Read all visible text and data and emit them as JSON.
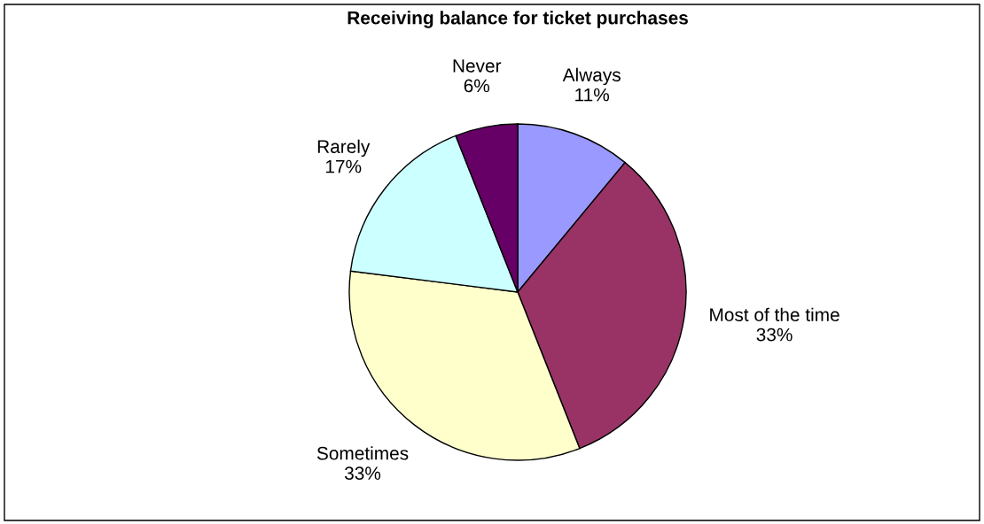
{
  "chart_data": {
    "type": "pie",
    "title": "Receiving balance for ticket purchases",
    "categories": [
      "Always",
      "Most of the time",
      "Sometimes",
      "Rarely",
      "Never"
    ],
    "values": [
      11,
      33,
      33,
      17,
      6
    ],
    "value_labels": [
      "11%",
      "33%",
      "33%",
      "17%",
      "6%"
    ],
    "colors": [
      "#9999ff",
      "#993366",
      "#ffffcc",
      "#ccffff",
      "#660066"
    ],
    "legend": false
  }
}
